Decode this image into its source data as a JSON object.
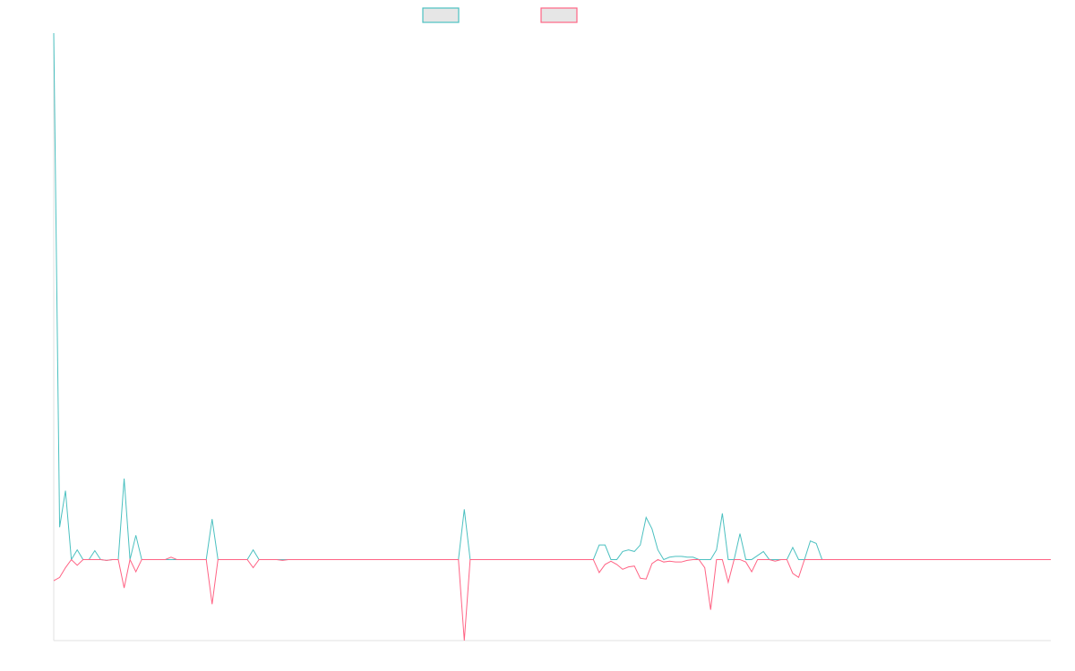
{
  "chart_data": {
    "type": "line",
    "title": "",
    "xlabel": "",
    "ylabel": "",
    "grid": false,
    "legend_position": "top-center",
    "x_count": 171,
    "ylim": [
      -1.0,
      6.5
    ],
    "series": [
      {
        "name": "",
        "color": "#4bc0c0",
        "points": [
          [
            0,
            6.5
          ],
          [
            1,
            0.4
          ],
          [
            2,
            0.85
          ],
          [
            3,
            0.0
          ],
          [
            4,
            0.12
          ],
          [
            5,
            0.0
          ],
          [
            6,
            0.0
          ],
          [
            7,
            0.11
          ],
          [
            8,
            0.0
          ],
          [
            9,
            -0.01
          ],
          [
            10,
            0.0
          ],
          [
            11,
            0.0
          ],
          [
            12,
            1.0
          ],
          [
            13,
            0.0
          ],
          [
            14,
            0.3
          ],
          [
            15,
            0.0
          ],
          [
            16,
            0.0
          ],
          [
            17,
            0.0
          ],
          [
            18,
            0.0
          ],
          [
            19,
            0.0
          ],
          [
            20,
            0.0
          ],
          [
            21,
            0.0
          ],
          [
            22,
            0.0
          ],
          [
            23,
            0.0
          ],
          [
            24,
            0.0
          ],
          [
            25,
            0.0
          ],
          [
            26,
            0.0
          ],
          [
            27,
            0.5
          ],
          [
            28,
            0.0
          ],
          [
            29,
            0.0
          ],
          [
            30,
            0.0
          ],
          [
            31,
            0.0
          ],
          [
            32,
            0.0
          ],
          [
            33,
            0.0
          ],
          [
            34,
            0.12
          ],
          [
            35,
            0.0
          ],
          [
            36,
            0.0
          ],
          [
            37,
            0.0
          ],
          [
            38,
            0.0
          ],
          [
            39,
            0.0
          ],
          [
            40,
            0.0
          ],
          [
            69,
            0.0
          ],
          [
            70,
            0.62
          ],
          [
            71,
            0.0
          ],
          [
            92,
            0.0
          ],
          [
            93,
            0.18
          ],
          [
            94,
            0.18
          ],
          [
            95,
            0.0
          ],
          [
            96,
            0.0
          ],
          [
            97,
            0.1
          ],
          [
            98,
            0.12
          ],
          [
            99,
            0.1
          ],
          [
            100,
            0.18
          ],
          [
            101,
            0.52
          ],
          [
            102,
            0.38
          ],
          [
            103,
            0.12
          ],
          [
            104,
            0.0
          ],
          [
            105,
            0.03
          ],
          [
            106,
            0.04
          ],
          [
            107,
            0.04
          ],
          [
            108,
            0.03
          ],
          [
            109,
            0.03
          ],
          [
            110,
            0.0
          ],
          [
            111,
            0.0
          ],
          [
            112,
            0.0
          ],
          [
            113,
            0.12
          ],
          [
            114,
            0.57
          ],
          [
            115,
            0.0
          ],
          [
            116,
            0.0
          ],
          [
            117,
            0.32
          ],
          [
            118,
            0.0
          ],
          [
            119,
            0.0
          ],
          [
            120,
            0.05
          ],
          [
            121,
            0.1
          ],
          [
            122,
            0.0
          ],
          [
            123,
            0.0
          ],
          [
            124,
            0.0
          ],
          [
            125,
            0.0
          ],
          [
            126,
            0.15
          ],
          [
            127,
            0.0
          ],
          [
            128,
            0.0
          ],
          [
            129,
            0.23
          ],
          [
            130,
            0.2
          ],
          [
            131,
            0.0
          ],
          [
            170,
            0.0
          ]
        ]
      },
      {
        "name": "",
        "color": "#ff6384",
        "points": [
          [
            0,
            -0.26
          ],
          [
            1,
            -0.22
          ],
          [
            2,
            -0.1
          ],
          [
            3,
            0.0
          ],
          [
            4,
            -0.07
          ],
          [
            5,
            0.0
          ],
          [
            6,
            0.0
          ],
          [
            7,
            0.0
          ],
          [
            8,
            0.0
          ],
          [
            9,
            -0.01
          ],
          [
            10,
            0.0
          ],
          [
            11,
            0.0
          ],
          [
            12,
            -0.35
          ],
          [
            13,
            0.0
          ],
          [
            14,
            -0.15
          ],
          [
            15,
            0.0
          ],
          [
            16,
            0.0
          ],
          [
            17,
            0.0
          ],
          [
            18,
            0.0
          ],
          [
            19,
            0.0
          ],
          [
            20,
            0.03
          ],
          [
            21,
            0.0
          ],
          [
            22,
            0.0
          ],
          [
            23,
            0.0
          ],
          [
            24,
            0.0
          ],
          [
            25,
            0.0
          ],
          [
            26,
            0.0
          ],
          [
            27,
            -0.55
          ],
          [
            28,
            0.0
          ],
          [
            29,
            0.0
          ],
          [
            30,
            0.0
          ],
          [
            31,
            0.0
          ],
          [
            32,
            0.0
          ],
          [
            33,
            0.0
          ],
          [
            34,
            -0.1
          ],
          [
            35,
            0.0
          ],
          [
            36,
            0.0
          ],
          [
            37,
            0.0
          ],
          [
            38,
            0.0
          ],
          [
            39,
            -0.01
          ],
          [
            40,
            0.0
          ],
          [
            69,
            0.0
          ],
          [
            70,
            -1.0
          ],
          [
            71,
            0.0
          ],
          [
            92,
            0.0
          ],
          [
            93,
            -0.16
          ],
          [
            94,
            -0.06
          ],
          [
            95,
            -0.02
          ],
          [
            96,
            -0.06
          ],
          [
            97,
            -0.12
          ],
          [
            98,
            -0.09
          ],
          [
            99,
            -0.08
          ],
          [
            100,
            -0.23
          ],
          [
            101,
            -0.24
          ],
          [
            102,
            -0.05
          ],
          [
            103,
            0.0
          ],
          [
            104,
            -0.03
          ],
          [
            105,
            -0.02
          ],
          [
            106,
            -0.03
          ],
          [
            107,
            -0.03
          ],
          [
            108,
            -0.01
          ],
          [
            109,
            0.0
          ],
          [
            110,
            0.0
          ],
          [
            111,
            -0.1
          ],
          [
            112,
            -0.62
          ],
          [
            113,
            0.0
          ],
          [
            114,
            0.0
          ],
          [
            115,
            -0.28
          ],
          [
            116,
            0.0
          ],
          [
            117,
            0.0
          ],
          [
            118,
            -0.03
          ],
          [
            119,
            -0.15
          ],
          [
            120,
            0.0
          ],
          [
            121,
            0.0
          ],
          [
            122,
            0.0
          ],
          [
            123,
            -0.02
          ],
          [
            124,
            0.0
          ],
          [
            125,
            0.0
          ],
          [
            126,
            -0.17
          ],
          [
            127,
            -0.22
          ],
          [
            128,
            0.0
          ],
          [
            170,
            0.0
          ]
        ]
      }
    ]
  }
}
